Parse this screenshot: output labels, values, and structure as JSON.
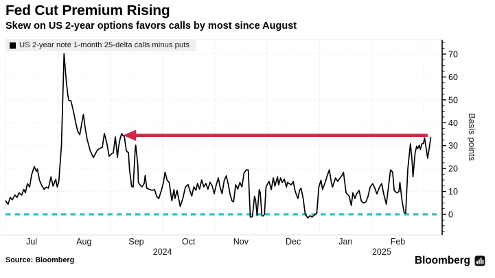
{
  "header": {
    "title": "Fed Cut Premium Rising",
    "subtitle": "Skew on US 2-year options favors calls by most since August"
  },
  "legend": {
    "label": "US 2-year note 1-month 25-delta calls minus puts",
    "swatch_color": "#000000"
  },
  "footer": {
    "source": "Source: Bloomberg",
    "brand": "Bloomberg"
  },
  "chart_data": {
    "type": "line",
    "title": "Fed Cut Premium Rising",
    "subtitle": "Skew on US 2-year options favors calls by most since August",
    "ylabel": "Basis points",
    "yticks": [
      0,
      10,
      20,
      30,
      40,
      50,
      60,
      70
    ],
    "minor_tick_step": 2.5,
    "ylim": [
      -9.5,
      76.5
    ],
    "x_unit": "months since 2024-07-01",
    "xlim": [
      0,
      8.35
    ],
    "month_labels": [
      "Jul",
      "Aug",
      "Sep",
      "Oct",
      "Nov",
      "Dec",
      "Jan",
      "Feb"
    ],
    "year_labels": [
      {
        "text": "2024",
        "t": 3.0
      },
      {
        "text": "2025",
        "t": 7.19
      }
    ],
    "grid": "dotted",
    "legend_position": "top-left",
    "line_color": "#000000",
    "accent_red": "#d32949",
    "accent_cyan": "#29c4cb",
    "series": [
      {
        "name": "US 2-year note 1-month 25-delta calls minus puts",
        "color": "#000000",
        "points": [
          [
            0.0,
            5.9
          ],
          [
            0.05,
            4.4
          ],
          [
            0.09,
            7.4
          ],
          [
            0.13,
            6.3
          ],
          [
            0.18,
            8.4
          ],
          [
            0.22,
            7.4
          ],
          [
            0.26,
            9.4
          ],
          [
            0.31,
            8.4
          ],
          [
            0.35,
            10.9
          ],
          [
            0.38,
            9.4
          ],
          [
            0.42,
            13.4
          ],
          [
            0.46,
            11.9
          ],
          [
            0.5,
            17.3
          ],
          [
            0.55,
            20.9
          ],
          [
            0.59,
            18.8
          ],
          [
            0.61,
            19.8
          ],
          [
            0.65,
            14.9
          ],
          [
            0.7,
            12.3
          ],
          [
            0.74,
            10.9
          ],
          [
            0.78,
            11.9
          ],
          [
            0.82,
            11.4
          ],
          [
            0.87,
            16.4
          ],
          [
            0.91,
            12.3
          ],
          [
            0.96,
            15.3
          ],
          [
            0.99,
            11.9
          ],
          [
            1.02,
            14.4
          ],
          [
            1.07,
            30.0
          ],
          [
            1.12,
            70.2
          ],
          [
            1.16,
            58.7
          ],
          [
            1.19,
            52.3
          ],
          [
            1.21,
            49.8
          ],
          [
            1.25,
            49.6
          ],
          [
            1.26,
            48.8
          ],
          [
            1.3,
            44.8
          ],
          [
            1.34,
            40.3
          ],
          [
            1.38,
            36.3
          ],
          [
            1.42,
            34.8
          ],
          [
            1.49,
            43.7
          ],
          [
            1.52,
            38.3
          ],
          [
            1.56,
            32.8
          ],
          [
            1.62,
            27.8
          ],
          [
            1.68,
            24.8
          ],
          [
            1.75,
            27.8
          ],
          [
            1.79,
            28.7
          ],
          [
            1.85,
            29.3
          ],
          [
            1.89,
            35.3
          ],
          [
            1.94,
            30.8
          ],
          [
            1.98,
            25.4
          ],
          [
            2.02,
            26.3
          ],
          [
            2.06,
            26.9
          ],
          [
            2.1,
            33.8
          ],
          [
            2.14,
            24.8
          ],
          [
            2.16,
            29.3
          ],
          [
            2.19,
            32.9
          ],
          [
            2.22,
            35.3
          ],
          [
            2.24,
            34.4
          ],
          [
            2.27,
            34.2
          ],
          [
            2.31,
            27.8
          ],
          [
            2.35,
            26.9
          ],
          [
            2.37,
            19.8
          ],
          [
            2.41,
            12.3
          ],
          [
            2.44,
            11.9
          ],
          [
            2.48,
            28.7
          ],
          [
            2.49,
            30.2
          ],
          [
            2.53,
            21.3
          ],
          [
            2.54,
            13.9
          ],
          [
            2.57,
            12.9
          ],
          [
            2.61,
            12.0
          ],
          [
            2.65,
            13.4
          ],
          [
            2.67,
            17.0
          ],
          [
            2.7,
            11.4
          ],
          [
            2.74,
            11.0
          ],
          [
            2.76,
            10.8
          ],
          [
            2.8,
            10.5
          ],
          [
            2.85,
            10.8
          ],
          [
            2.89,
            7.8
          ],
          [
            2.93,
            6.9
          ],
          [
            2.98,
            10.5
          ],
          [
            3.02,
            14.0
          ],
          [
            3.05,
            18.4
          ],
          [
            3.09,
            14.9
          ],
          [
            3.13,
            13.9
          ],
          [
            3.18,
            5.9
          ],
          [
            3.22,
            10.8
          ],
          [
            3.24,
            6.9
          ],
          [
            3.28,
            10.4
          ],
          [
            3.34,
            3.4
          ],
          [
            3.39,
            6.9
          ],
          [
            3.44,
            11.9
          ],
          [
            3.49,
            13.0
          ],
          [
            3.53,
            10.0
          ],
          [
            3.56,
            8.0
          ],
          [
            3.6,
            12.0
          ],
          [
            3.64,
            10.5
          ],
          [
            3.67,
            13.5
          ],
          [
            3.71,
            11.0
          ],
          [
            3.75,
            15.0
          ],
          [
            3.79,
            12.0
          ],
          [
            3.83,
            13.5
          ],
          [
            3.87,
            11.0
          ],
          [
            3.91,
            14.0
          ],
          [
            3.95,
            12.5
          ],
          [
            3.99,
            9.0
          ],
          [
            4.03,
            13.0
          ],
          [
            4.07,
            15.9
          ],
          [
            4.1,
            12.0
          ],
          [
            4.14,
            9.0
          ],
          [
            4.18,
            14.7
          ],
          [
            4.22,
            16.8
          ],
          [
            4.26,
            13.0
          ],
          [
            4.29,
            9.0
          ],
          [
            4.33,
            5.9
          ],
          [
            4.36,
            5.4
          ],
          [
            4.4,
            12.9
          ],
          [
            4.44,
            11.0
          ],
          [
            4.48,
            13.9
          ],
          [
            4.52,
            12.0
          ],
          [
            4.56,
            18.0
          ],
          [
            4.6,
            19.4
          ],
          [
            4.64,
            19.4
          ],
          [
            4.68,
            -1.2
          ],
          [
            4.72,
            -1.0
          ],
          [
            4.76,
            7.9
          ],
          [
            4.78,
            6.5
          ],
          [
            4.81,
            -0.5
          ],
          [
            4.85,
            10.8
          ],
          [
            4.87,
            9.5
          ],
          [
            4.9,
            -0.5
          ],
          [
            4.92,
            -0.8
          ],
          [
            4.95,
            0.0
          ],
          [
            4.98,
            11.9
          ],
          [
            5.0,
            12.9
          ],
          [
            5.04,
            14.4
          ],
          [
            5.08,
            10.8
          ],
          [
            5.12,
            15.9
          ],
          [
            5.15,
            12.3
          ],
          [
            5.2,
            16.4
          ],
          [
            5.22,
            12.9
          ],
          [
            5.26,
            15.9
          ],
          [
            5.29,
            13.9
          ],
          [
            5.33,
            15.4
          ],
          [
            5.37,
            11.9
          ],
          [
            5.39,
            13.9
          ],
          [
            5.46,
            12.9
          ],
          [
            5.5,
            14.4
          ],
          [
            5.54,
            9.9
          ],
          [
            5.59,
            6.9
          ],
          [
            5.62,
            10.4
          ],
          [
            5.65,
            11.4
          ],
          [
            5.69,
            6.9
          ],
          [
            5.73,
            0.0
          ],
          [
            5.78,
            -1.6
          ],
          [
            5.82,
            -0.6
          ],
          [
            5.86,
            -1.2
          ],
          [
            5.92,
            0.0
          ],
          [
            5.95,
            0.4
          ],
          [
            5.99,
            11.9
          ],
          [
            6.03,
            14.9
          ],
          [
            6.06,
            10.8
          ],
          [
            6.11,
            13.9
          ],
          [
            6.15,
            16.9
          ],
          [
            6.19,
            19.4
          ],
          [
            6.23,
            13.9
          ],
          [
            6.25,
            11.9
          ],
          [
            6.31,
            15.9
          ],
          [
            6.35,
            14.4
          ],
          [
            6.38,
            15.4
          ],
          [
            6.44,
            17.3
          ],
          [
            6.46,
            18.4
          ],
          [
            6.51,
            9.4
          ],
          [
            6.57,
            7.9
          ],
          [
            6.61,
            3.9
          ],
          [
            6.64,
            9.4
          ],
          [
            6.68,
            6.9
          ],
          [
            6.71,
            8.9
          ],
          [
            6.76,
            10.4
          ],
          [
            6.8,
            5.9
          ],
          [
            6.84,
            4.9
          ],
          [
            6.89,
            5.4
          ],
          [
            6.93,
            7.9
          ],
          [
            6.97,
            11.9
          ],
          [
            7.02,
            13.4
          ],
          [
            7.06,
            11.4
          ],
          [
            7.1,
            8.9
          ],
          [
            7.15,
            11.9
          ],
          [
            7.19,
            13.4
          ],
          [
            7.23,
            8.9
          ],
          [
            7.28,
            4.4
          ],
          [
            7.32,
            11.9
          ],
          [
            7.36,
            19.4
          ],
          [
            7.4,
            18.4
          ],
          [
            7.43,
            10.4
          ],
          [
            7.48,
            9.4
          ],
          [
            7.52,
            9.9
          ],
          [
            7.54,
            13.9
          ],
          [
            7.58,
            5.9
          ],
          [
            7.62,
            0.9
          ],
          [
            7.65,
            0.5
          ],
          [
            7.69,
            19.8
          ],
          [
            7.74,
            30.8
          ],
          [
            7.77,
            23.8
          ],
          [
            7.79,
            16.4
          ],
          [
            7.83,
            26.8
          ],
          [
            7.86,
            29.8
          ],
          [
            7.88,
            28.7
          ],
          [
            7.91,
            30.2
          ],
          [
            7.93,
            28.4
          ],
          [
            7.96,
            30.8
          ],
          [
            7.99,
            31.0
          ],
          [
            8.01,
            33.4
          ],
          [
            8.07,
            24.5
          ],
          [
            8.1,
            29.0
          ],
          [
            8.13,
            33.5
          ]
        ]
      }
    ],
    "annotations": [
      {
        "type": "arrow",
        "direction": "left",
        "y": 34.5,
        "t_head": 2.26,
        "t_tail": 8.07,
        "color": "#d32949"
      },
      {
        "type": "reference-line",
        "style": "dashed",
        "y": 0,
        "t_start": 0,
        "t_end": 8.28,
        "color": "#29c4cb"
      }
    ]
  }
}
